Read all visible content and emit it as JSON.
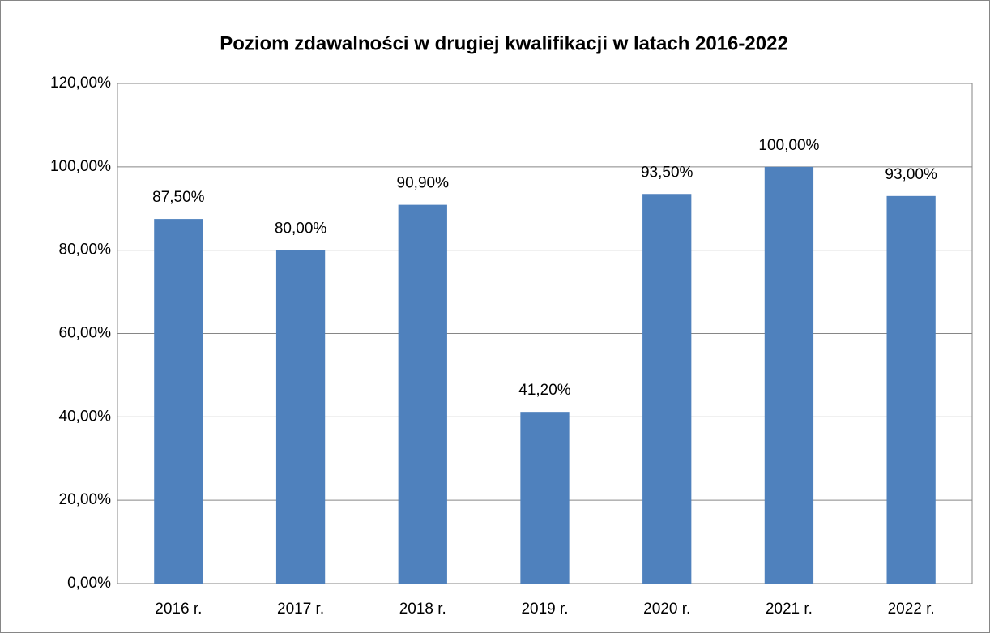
{
  "chart_data": {
    "type": "bar",
    "title": "Poziom zdawalności w drugiej kwalifikacji w latach 2016-2022",
    "categories": [
      "2016 r.",
      "2017 r.",
      "2018 r.",
      "2019 r.",
      "2020 r.",
      "2021 r.",
      "2022 r."
    ],
    "values": [
      87.5,
      80,
      90.9,
      41.2,
      93.5,
      100,
      93
    ],
    "value_labels": [
      "87,50%",
      "80,00%",
      "90,90%",
      "41,20%",
      "93,50%",
      "100,00%",
      "93,00%"
    ],
    "color": "#4f81bd",
    "ylim": [
      0,
      120
    ],
    "yticks": [
      {
        "value": 0,
        "label": "0,00%"
      },
      {
        "value": 20,
        "label": "20,00%"
      },
      {
        "value": 40,
        "label": "40,00%"
      },
      {
        "value": 60,
        "label": "60,00%"
      },
      {
        "value": 80,
        "label": "80,00%"
      },
      {
        "value": 100,
        "label": "100,00%"
      },
      {
        "value": 120,
        "label": "120,00%"
      }
    ],
    "grid": true
  }
}
